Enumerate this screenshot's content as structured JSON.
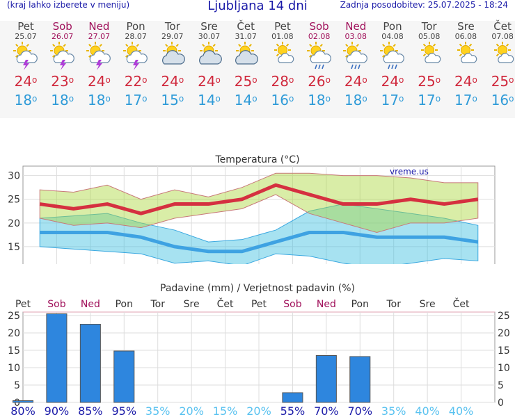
{
  "header": {
    "menu_hint": "(kraj lahko izberete v meniju)",
    "title": "Ljubljana 14 dni",
    "updated": "Zadnja posodobitev: 25.07.2025 - 18:24"
  },
  "forecast": [
    {
      "day": "Pet",
      "date": "25.07",
      "weekend": false,
      "icon": "sun-cloud-storm-icon",
      "tmax": "24",
      "tmin": "18"
    },
    {
      "day": "Sob",
      "date": "26.07",
      "weekend": true,
      "icon": "sun-cloud-storm-icon",
      "tmax": "23",
      "tmin": "18"
    },
    {
      "day": "Ned",
      "date": "27.07",
      "weekend": true,
      "icon": "sun-cloud-storm-icon",
      "tmax": "24",
      "tmin": "18"
    },
    {
      "day": "Pon",
      "date": "28.07",
      "weekend": false,
      "icon": "sun-cloud-storm-icon",
      "tmax": "22",
      "tmin": "17"
    },
    {
      "day": "Tor",
      "date": "29.07",
      "weekend": false,
      "icon": "partly-cloudy-icon",
      "tmax": "24",
      "tmin": "15"
    },
    {
      "day": "Sre",
      "date": "30.07",
      "weekend": false,
      "icon": "partly-cloudy-icon",
      "tmax": "24",
      "tmin": "14"
    },
    {
      "day": "Čet",
      "date": "31.07",
      "weekend": false,
      "icon": "partly-cloudy-icon",
      "tmax": "25",
      "tmin": "14"
    },
    {
      "day": "Pet",
      "date": "01.08",
      "weekend": false,
      "icon": "sun-small-cloud-icon",
      "tmax": "28",
      "tmin": "16"
    },
    {
      "day": "Sob",
      "date": "02.08",
      "weekend": true,
      "icon": "sun-cloud-rain-icon",
      "tmax": "26",
      "tmin": "18"
    },
    {
      "day": "Ned",
      "date": "03.08",
      "weekend": true,
      "icon": "sun-cloud-rain-icon",
      "tmax": "24",
      "tmin": "18"
    },
    {
      "day": "Pon",
      "date": "04.08",
      "weekend": false,
      "icon": "sun-cloud-rain-icon",
      "tmax": "24",
      "tmin": "17"
    },
    {
      "day": "Tor",
      "date": "05.08",
      "weekend": false,
      "icon": "sun-small-cloud-icon",
      "tmax": "25",
      "tmin": "17"
    },
    {
      "day": "Sre",
      "date": "06.08",
      "weekend": false,
      "icon": "sun-small-cloud-icon",
      "tmax": "24",
      "tmin": "17"
    },
    {
      "day": "Čet",
      "date": "07.08",
      "weekend": false,
      "icon": "sun-small-cloud-icon",
      "tmax": "25",
      "tmin": "16"
    }
  ],
  "colors": {
    "weekday": "#444444",
    "weekend": "#a0105a",
    "tmax": "#d0283c",
    "tmin": "#2f9bd8",
    "bar": "#2e86de",
    "prob_high": "#1a1aa8",
    "prob_low": "#59c2f0"
  },
  "chart_data": [
    {
      "type": "line",
      "title": "Temperatura (°C)",
      "watermark": "vreme.us",
      "x": [
        "25.07",
        "26.07",
        "27.07",
        "28.07",
        "29.07",
        "30.07",
        "31.07",
        "01.08",
        "02.08",
        "03.08",
        "04.08",
        "05.08",
        "06.08",
        "07.08"
      ],
      "ylim": [
        10,
        32
      ],
      "yticks": [
        10,
        15,
        20,
        25,
        30
      ],
      "grid": true,
      "series": [
        {
          "role": "max",
          "values": [
            24,
            23,
            24,
            22,
            24,
            24,
            25,
            28,
            26,
            24,
            24,
            25,
            24,
            25
          ]
        },
        {
          "role": "max-range-upper",
          "values": [
            27,
            26.5,
            28,
            25,
            27,
            25.5,
            27.5,
            30.5,
            30.5,
            30,
            30,
            29.5,
            28.5,
            28.5
          ]
        },
        {
          "role": "max-range-lower",
          "values": [
            21,
            19.5,
            20,
            19,
            21,
            22,
            23,
            26,
            22,
            20,
            18,
            20,
            20,
            21
          ]
        },
        {
          "role": "min",
          "values": [
            18,
            18,
            18,
            17,
            15,
            14,
            14,
            16,
            18,
            18,
            17,
            17,
            17,
            16
          ]
        },
        {
          "role": "min-range-upper",
          "values": [
            21,
            21.5,
            22,
            20,
            18.5,
            16,
            16.5,
            18.5,
            22.5,
            24,
            23,
            22,
            21,
            19.5
          ]
        },
        {
          "role": "min-range-lower",
          "values": [
            15,
            14.5,
            14,
            13.5,
            11.5,
            12,
            11,
            13.5,
            13,
            11.5,
            10.5,
            11.5,
            12.5,
            12
          ]
        }
      ]
    },
    {
      "type": "bar",
      "title": "Padavine (mm) / Verjetnost padavin (%)",
      "categories": [
        "Pet",
        "Sob",
        "Ned",
        "Pon",
        "Tor",
        "Sre",
        "Čet",
        "Pet",
        "Sob",
        "Ned",
        "Pon",
        "Tor",
        "Sre",
        "Čet"
      ],
      "weekend": [
        false,
        true,
        true,
        false,
        false,
        false,
        false,
        false,
        true,
        true,
        false,
        false,
        false,
        false
      ],
      "values": [
        0.5,
        25.5,
        22.5,
        14.8,
        0,
        0,
        0,
        0,
        2.8,
        13.5,
        13.2,
        0,
        0,
        0
      ],
      "probability": [
        "80%",
        "90%",
        "85%",
        "95%",
        "35%",
        "20%",
        "15%",
        "20%",
        "55%",
        "70%",
        "70%",
        "35%",
        "40%",
        "40%"
      ],
      "ylim": [
        0,
        26
      ],
      "yticks": [
        0,
        5,
        10,
        15,
        20,
        25
      ]
    }
  ]
}
